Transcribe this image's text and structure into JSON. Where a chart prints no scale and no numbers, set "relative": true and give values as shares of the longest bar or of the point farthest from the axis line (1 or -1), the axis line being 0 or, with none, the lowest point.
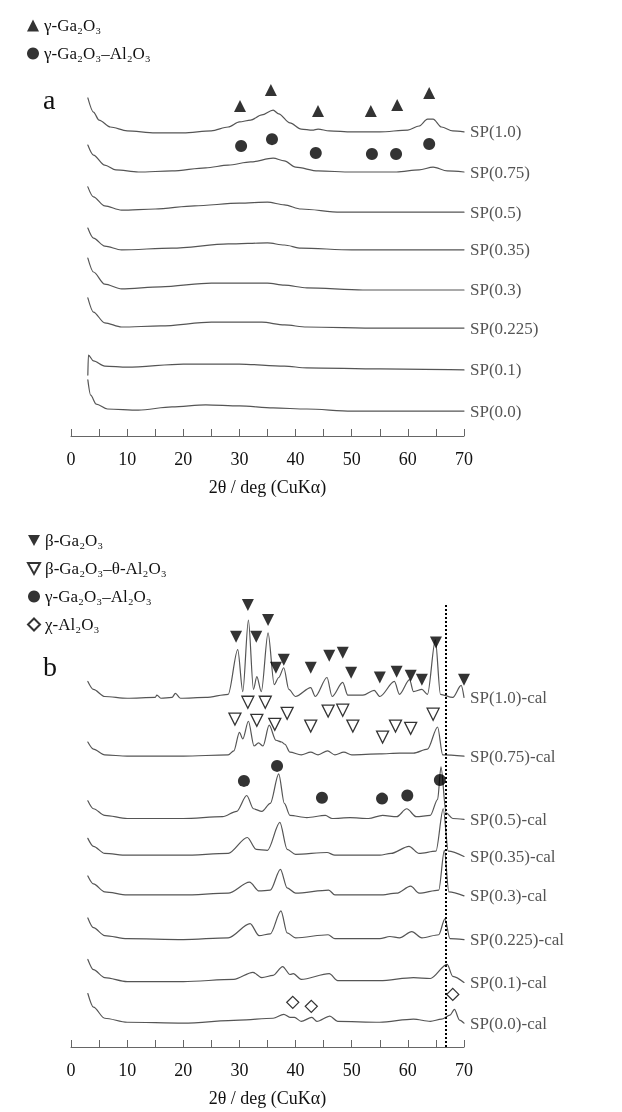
{
  "chart_data": [
    {
      "type": "line",
      "title": "a",
      "xlabel": "2θ / deg (CuKα)",
      "relative": true,
      "marker": "none",
      "legend": "top left",
      "xlim": [
        0,
        70
      ],
      "xticks": [
        0,
        {
          "value": 5,
          "label": null
        },
        10,
        {
          "value": 15,
          "label": null
        },
        20,
        {
          "value": 25,
          "label": null
        },
        30,
        {
          "value": 35,
          "label": null
        },
        40,
        {
          "value": 45,
          "label": null
        },
        50,
        {
          "value": 55,
          "label": null
        },
        60,
        {
          "value": 65,
          "label": null
        },
        70
      ],
      "series": [
        {
          "name": "SP(1.0)",
          "color": "#555555",
          "x": [
            3,
            4,
            5,
            7,
            10,
            15,
            20,
            25,
            28,
            30,
            32,
            34,
            36,
            37,
            39,
            41,
            43,
            44,
            46,
            50,
            55,
            60,
            62,
            63.5,
            64.5,
            66,
            68,
            70
          ],
          "values": [
            0.977,
            0.936,
            0.913,
            0.893,
            0.882,
            0.876,
            0.876,
            0.882,
            0.893,
            0.908,
            0.913,
            0.928,
            0.942,
            0.931,
            0.905,
            0.887,
            0.884,
            0.887,
            0.882,
            0.879,
            0.879,
            0.884,
            0.896,
            0.916,
            0.916,
            0.893,
            0.882,
            0.879
          ]
        },
        {
          "name": "SP(0.75)",
          "color": "#555555",
          "x": [
            3,
            4,
            6,
            8,
            12,
            18,
            24,
            28,
            32,
            36,
            38,
            40,
            44,
            50,
            58,
            62,
            64.5,
            67,
            70
          ],
          "values": [
            0.841,
            0.812,
            0.783,
            0.769,
            0.763,
            0.766,
            0.775,
            0.783,
            0.792,
            0.803,
            0.795,
            0.777,
            0.766,
            0.763,
            0.763,
            0.769,
            0.777,
            0.766,
            0.763
          ]
        },
        {
          "name": "SP(0.5)",
          "color": "#555555",
          "x": [
            3,
            4,
            6,
            9,
            15,
            22,
            30,
            35,
            38,
            41,
            48,
            60,
            70
          ],
          "values": [
            0.72,
            0.691,
            0.665,
            0.653,
            0.656,
            0.665,
            0.673,
            0.676,
            0.668,
            0.656,
            0.647,
            0.647,
            0.647
          ]
        },
        {
          "name": "SP(0.35)",
          "color": "#555555",
          "x": [
            3,
            4,
            6,
            9,
            18,
            28,
            35,
            38,
            41,
            50,
            70
          ],
          "values": [
            0.601,
            0.572,
            0.549,
            0.538,
            0.543,
            0.555,
            0.558,
            0.552,
            0.543,
            0.538,
            0.538
          ]
        },
        {
          "name": "SP(0.3)",
          "color": "#555555",
          "x": [
            3,
            4,
            6,
            9,
            16,
            25,
            35,
            38,
            42,
            52,
            70
          ],
          "values": [
            0.514,
            0.474,
            0.439,
            0.425,
            0.431,
            0.442,
            0.442,
            0.436,
            0.428,
            0.422,
            0.422
          ]
        },
        {
          "name": "SP(0.225)",
          "color": "#555555",
          "x": [
            3,
            4,
            6,
            9,
            16,
            25,
            34,
            38,
            42,
            55,
            70
          ],
          "values": [
            0.399,
            0.358,
            0.327,
            0.315,
            0.318,
            0.329,
            0.329,
            0.321,
            0.315,
            0.312,
            0.312
          ]
        },
        {
          "name": "SP(0.1)",
          "color": "#555555",
          "x": [
            3,
            3.1,
            4,
            6,
            10,
            20,
            30,
            38,
            42,
            55,
            70
          ],
          "values": [
            0.176,
            0.234,
            0.217,
            0.202,
            0.199,
            0.208,
            0.208,
            0.202,
            0.197,
            0.194,
            0.191
          ]
        },
        {
          "name": "SP(0.0)",
          "color": "#555555",
          "x": [
            3,
            3.5,
            4.5,
            6.5,
            12,
            18,
            24,
            30,
            36,
            42,
            50,
            70
          ],
          "values": [
            0.162,
            0.118,
            0.092,
            0.078,
            0.075,
            0.084,
            0.09,
            0.087,
            0.081,
            0.078,
            0.072,
            0.072
          ]
        },
        {
          "type": "scatter",
          "name": "γ-Ga₂O₃",
          "color": "#000000",
          "marker": "triangle",
          "x": [
            30.1,
            35.6,
            44.0,
            53.4,
            58.1,
            63.8
          ],
          "values": [
            0.954,
            1.0,
            0.939,
            0.939,
            0.957,
            0.991
          ]
        },
        {
          "type": "scatter",
          "name": "γ-Ga₂O₃–Al₂O₃",
          "color": "#000000",
          "marker": "circle",
          "x": [
            30.3,
            35.8,
            43.6,
            53.6,
            57.9,
            63.8
          ],
          "values": [
            0.838,
            0.858,
            0.818,
            0.815,
            0.815,
            0.844
          ]
        }
      ]
    },
    {
      "type": "line",
      "title": "b",
      "xlabel": "2θ / deg (CuKα)",
      "relative": true,
      "marker": "none",
      "legend": "top left",
      "xlim": [
        0,
        70
      ],
      "xticks": [
        0,
        {
          "value": 5,
          "label": null
        },
        10,
        {
          "value": 15,
          "label": null
        },
        20,
        {
          "value": 25,
          "label": null
        },
        30,
        {
          "value": 35,
          "label": null
        },
        40,
        {
          "value": 45,
          "label": null
        },
        50,
        {
          "value": 55,
          "label": null
        },
        60,
        {
          "value": 65,
          "label": null
        },
        70
      ],
      "ref_lines": [
        {
          "axis": "x",
          "value": 66.8,
          "color": "#000000",
          "line_style": "dotted"
        }
      ],
      "series": [
        {
          "name": "SP(1.0)-cal",
          "color": "#555555",
          "x": [
            3,
            4,
            6,
            10,
            15,
            15.3,
            16,
            18,
            18.6,
            19.5,
            24,
            28,
            29.7,
            30.6,
            31.6,
            32.5,
            33.1,
            33.9,
            35.1,
            36.2,
            37,
            37.9,
            38.8,
            40,
            42.7,
            43.5,
            45.6,
            46.5,
            48.4,
            49.3,
            52,
            54,
            55,
            57.6,
            58.5,
            60.3,
            61,
            62.5,
            63.5,
            64.9,
            65.8,
            68,
            69.5,
            70
          ],
          "values": [
            0.827,
            0.809,
            0.793,
            0.789,
            0.791,
            0.796,
            0.789,
            0.791,
            0.8,
            0.789,
            0.791,
            0.798,
            0.899,
            0.804,
            0.966,
            0.809,
            0.838,
            0.804,
            0.937,
            0.82,
            0.836,
            0.858,
            0.809,
            0.793,
            0.813,
            0.793,
            0.836,
            0.793,
            0.825,
            0.796,
            0.796,
            0.807,
            0.793,
            0.827,
            0.798,
            0.831,
            0.804,
            0.809,
            0.798,
            0.921,
            0.798,
            0.791,
            0.818,
            0.791
          ]
        },
        {
          "name": "SP(0.75)-cal",
          "color": "#555555",
          "x": [
            3,
            4,
            6,
            10,
            20,
            28,
            29,
            30,
            30.6,
            31.6,
            32.6,
            33.4,
            34.2,
            35.3,
            36.5,
            37.5,
            38.1,
            39,
            41,
            42.7,
            44,
            45.7,
            47,
            48.6,
            50,
            55,
            58.5,
            61,
            63.5,
            65.3,
            66.2,
            70
          ],
          "values": [
            0.69,
            0.674,
            0.661,
            0.658,
            0.658,
            0.661,
            0.67,
            0.712,
            0.697,
            0.737,
            0.681,
            0.688,
            0.681,
            0.728,
            0.694,
            0.69,
            0.685,
            0.667,
            0.661,
            0.667,
            0.661,
            0.67,
            0.661,
            0.667,
            0.661,
            0.663,
            0.665,
            0.665,
            0.674,
            0.724,
            0.661,
            0.658
          ]
        },
        {
          "name": "SP(0.5)-cal",
          "color": "#555555",
          "x": [
            3,
            4,
            6,
            10,
            20,
            27,
            29.5,
            31.3,
            32.5,
            34,
            35.5,
            37,
            38,
            39,
            42,
            45.3,
            46.5,
            49.7,
            53,
            55.5,
            58,
            59.8,
            61.5,
            64,
            65.3,
            65.9,
            66.8,
            68,
            70
          ],
          "values": [
            0.557,
            0.539,
            0.524,
            0.517,
            0.517,
            0.521,
            0.533,
            0.569,
            0.539,
            0.533,
            0.551,
            0.618,
            0.551,
            0.524,
            0.519,
            0.524,
            0.517,
            0.519,
            0.517,
            0.524,
            0.521,
            0.539,
            0.521,
            0.524,
            0.56,
            0.634,
            0.53,
            0.517,
            0.515
          ]
        },
        {
          "name": "SP(0.35)-cal",
          "color": "#555555",
          "x": [
            3,
            4,
            6,
            10,
            20,
            28,
            31.4,
            33,
            35,
            37.2,
            38.5,
            40,
            45.6,
            47,
            55,
            57,
            60.2,
            62,
            65,
            66.3,
            67.2,
            70
          ],
          "values": [
            0.472,
            0.454,
            0.438,
            0.434,
            0.434,
            0.438,
            0.474,
            0.447,
            0.445,
            0.508,
            0.447,
            0.436,
            0.44,
            0.434,
            0.434,
            0.438,
            0.454,
            0.438,
            0.443,
            0.539,
            0.443,
            0.431
          ]
        },
        {
          "name": "SP(0.3)-cal",
          "color": "#555555",
          "x": [
            3,
            4,
            6,
            10,
            20,
            28,
            31.8,
            33.5,
            35.5,
            37.3,
            38.5,
            40,
            45.9,
            47,
            55,
            58,
            60.5,
            62,
            65.5,
            66.5,
            67.3,
            70
          ],
          "values": [
            0.387,
            0.369,
            0.351,
            0.344,
            0.344,
            0.348,
            0.373,
            0.353,
            0.355,
            0.402,
            0.36,
            0.348,
            0.355,
            0.344,
            0.344,
            0.348,
            0.364,
            0.348,
            0.355,
            0.445,
            0.351,
            0.342
          ]
        },
        {
          "name": "SP(0.225)-cal",
          "color": "#555555",
          "x": [
            3,
            4,
            6,
            10,
            20,
            28,
            31.9,
            33.5,
            35.5,
            37.4,
            38.5,
            40,
            45.8,
            47,
            55,
            56.8,
            58.5,
            60.7,
            62.5,
            65.5,
            66.6,
            67.5,
            70
          ],
          "values": [
            0.292,
            0.27,
            0.252,
            0.245,
            0.243,
            0.247,
            0.279,
            0.252,
            0.256,
            0.308,
            0.258,
            0.247,
            0.254,
            0.245,
            0.245,
            0.25,
            0.247,
            0.261,
            0.247,
            0.254,
            0.29,
            0.245,
            0.243
          ]
        },
        {
          "name": "SP(0.1)-cal",
          "color": "#555555",
          "x": [
            3,
            4,
            6,
            10,
            20,
            29,
            32.4,
            34,
            36,
            37.7,
            39,
            39.6,
            41,
            46,
            47.5,
            55,
            61,
            64,
            67,
            68,
            70
          ],
          "values": [
            0.198,
            0.175,
            0.157,
            0.148,
            0.148,
            0.153,
            0.169,
            0.157,
            0.162,
            0.182,
            0.164,
            0.166,
            0.153,
            0.166,
            0.15,
            0.15,
            0.157,
            0.155,
            0.187,
            0.16,
            0.146
          ]
        },
        {
          "name": "SP(0.0)-cal",
          "color": "#555555",
          "x": [
            3,
            4,
            6,
            10,
            20,
            30,
            36,
            37.9,
            39,
            39.8,
            41,
            42.9,
            43.8,
            46.1,
            47.5,
            55,
            61,
            64,
            66,
            67.5,
            68.3,
            69.2,
            70
          ],
          "values": [
            0.121,
            0.09,
            0.065,
            0.056,
            0.054,
            0.061,
            0.065,
            0.074,
            0.067,
            0.067,
            0.058,
            0.067,
            0.058,
            0.07,
            0.058,
            0.056,
            0.063,
            0.058,
            0.063,
            0.072,
            0.085,
            0.061,
            0.054
          ]
        },
        {
          "type": "scatter",
          "name": "β-Ga₂O₃",
          "color": "#000000",
          "marker": "triangle-down",
          "x": [
            29.4,
            31.5,
            33.0,
            35.1,
            36.5,
            37.9,
            42.7,
            46.0,
            48.4,
            49.9,
            55.0,
            58.0,
            60.5,
            62.5,
            65.0,
            70.0
          ],
          "values": [
            0.928,
            1.0,
            0.928,
            0.966,
            0.858,
            0.876,
            0.858,
            0.885,
            0.892,
            0.847,
            0.836,
            0.849,
            0.84,
            0.831,
            0.915,
            0.831
          ]
        },
        {
          "type": "scatter",
          "name": "β-Ga₂O₃–θ-Al₂O₃",
          "color": "#000000",
          "marker": "triangle-down-open",
          "x": [
            29.2,
            31.5,
            33.1,
            34.6,
            36.3,
            38.5,
            42.7,
            45.8,
            48.4,
            50.2,
            55.5,
            57.8,
            60.5,
            64.5
          ],
          "values": [
            0.742,
            0.78,
            0.739,
            0.78,
            0.73,
            0.755,
            0.726,
            0.76,
            0.762,
            0.726,
            0.701,
            0.726,
            0.721,
            0.753
          ]
        },
        {
          "type": "scatter",
          "name": "γ-Ga₂O₃–Al₂O₃",
          "color": "#000000",
          "marker": "circle",
          "x": [
            30.8,
            36.7,
            44.7,
            55.4,
            59.9,
            65.7
          ],
          "values": [
            0.602,
            0.636,
            0.564,
            0.562,
            0.569,
            0.604
          ]
        },
        {
          "type": "scatter",
          "name": "χ-Al₂O₃",
          "color": "#000000",
          "marker": "diamond-open",
          "x": [
            39.5,
            42.8,
            68.0
          ],
          "values": [
            0.101,
            0.092,
            0.119
          ]
        }
      ]
    }
  ]
}
